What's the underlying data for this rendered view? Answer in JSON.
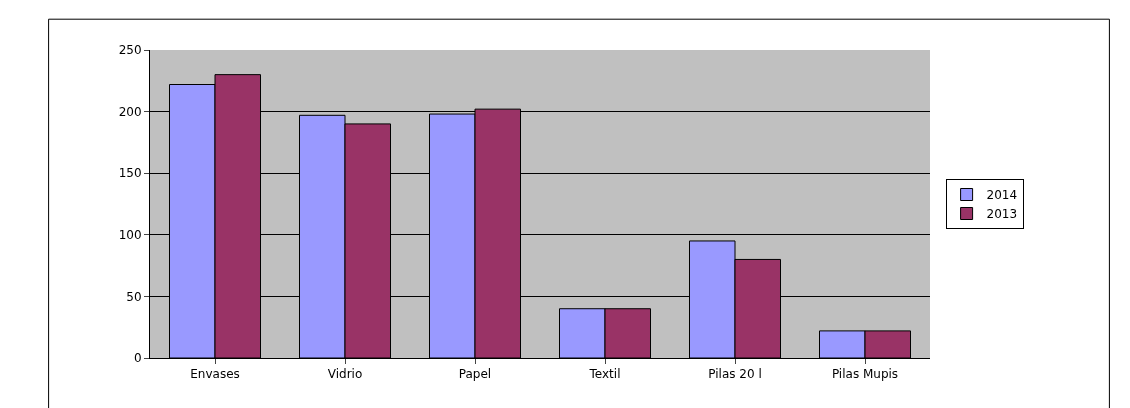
{
  "chart_data": {
    "type": "bar",
    "categories": [
      "Envases",
      "Vidrio",
      "Papel",
      "Textil",
      "Pilas 20 l",
      "Pilas Mupis"
    ],
    "series": [
      {
        "name": "2014",
        "color": "#9999ff",
        "values": [
          222,
          197,
          198,
          40,
          95,
          22
        ]
      },
      {
        "name": "2013",
        "color": "#993366",
        "values": [
          230,
          190,
          202,
          40,
          80,
          22
        ]
      }
    ],
    "ylim": [
      0,
      250
    ],
    "yticks": [
      0,
      50,
      100,
      150,
      200,
      250
    ],
    "grid": "y",
    "legend": "right"
  }
}
